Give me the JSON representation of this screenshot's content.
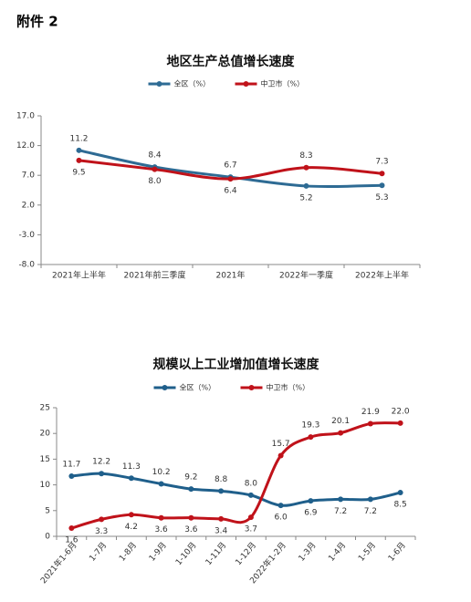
{
  "page_title": "附件 2",
  "chart_data": [
    {
      "type": "line",
      "title": "地区生产总值增长速度",
      "categories": [
        "2021年上半年",
        "2021年前三季度",
        "2021年",
        "2022年一季度",
        "2022年上半年"
      ],
      "series": [
        {
          "name": "全区（%）",
          "color": "#2e6b94",
          "values": [
            11.2,
            8.4,
            6.7,
            5.2,
            5.3
          ],
          "value_labels": [
            "11.2",
            "8.4",
            "6.7",
            "5.2",
            "5.3"
          ]
        },
        {
          "name": "中卫市（%）",
          "color": "#c0121a",
          "values": [
            9.5,
            8.0,
            6.4,
            8.3,
            7.3
          ],
          "value_labels": [
            "9.5",
            "8.0",
            "6.4",
            "8.3",
            "7.3"
          ]
        }
      ],
      "ylim": [
        -8,
        17
      ],
      "yticks": [
        {
          "value": 17,
          "label": "17.0"
        },
        {
          "value": 12,
          "label": "12.0"
        },
        {
          "value": 7,
          "label": "7.0"
        },
        {
          "value": 2,
          "label": "2.0"
        },
        {
          "value": -3,
          "label": "-3.0"
        },
        {
          "value": -8,
          "label": "-8.0"
        }
      ],
      "grid": false
    },
    {
      "type": "line",
      "title": "规模以上工业增加值增长速度",
      "categories": [
        "2021年1-6月",
        "1-7月",
        "1-8月",
        "1-9月",
        "1-10月",
        "1-11月",
        "1-12月",
        "2022年1-2月",
        "1-3月",
        "1-4月",
        "1-5月",
        "1-6月"
      ],
      "series": [
        {
          "name": "全区（%）",
          "color": "#1f5f8b",
          "values": [
            11.7,
            12.2,
            11.3,
            10.2,
            9.2,
            8.8,
            8.0,
            6.0,
            6.9,
            7.2,
            7.2,
            8.5
          ],
          "value_labels": [
            "11.7",
            "12.2",
            "11.3",
            "10.2",
            "9.2",
            "8.8",
            "8.0",
            "6.0",
            "6.9",
            "7.2",
            "7.2",
            "8.5"
          ]
        },
        {
          "name": "中卫市（%）",
          "color": "#c0121a",
          "values": [
            1.6,
            3.3,
            4.2,
            3.6,
            3.6,
            3.4,
            3.7,
            15.7,
            19.3,
            20.1,
            21.9,
            22.0
          ],
          "value_labels": [
            "1.6",
            "3.3",
            "4.2",
            "3.6",
            "3.6",
            "3.4",
            "3.7",
            "15.7",
            "19.3",
            "20.1",
            "21.9",
            "22.0"
          ]
        }
      ],
      "ylim": [
        0,
        25
      ],
      "yticks": [
        0,
        5,
        10,
        15,
        20,
        25
      ],
      "grid": false
    }
  ]
}
